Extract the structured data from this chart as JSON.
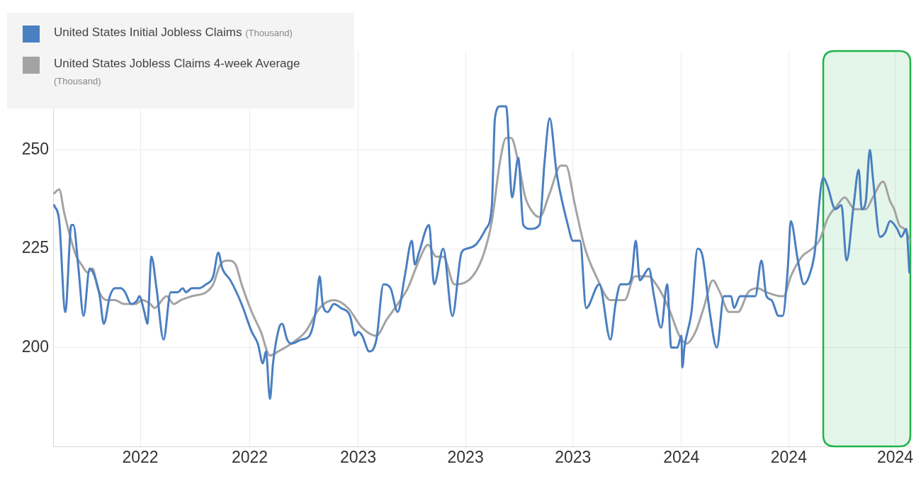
{
  "chart_data": {
    "type": "line",
    "xlim": [
      "2022-06-01",
      "2024-09-24"
    ],
    "xticks": [
      {
        "value": "2022-08-26",
        "label": "2022"
      },
      {
        "value": "2022-12-12",
        "label": "2022"
      },
      {
        "value": "2023-03-29",
        "label": "2023"
      },
      {
        "value": "2023-07-13",
        "label": "2023"
      },
      {
        "value": "2023-10-27",
        "label": "2023"
      },
      {
        "value": "2024-02-11",
        "label": "2024"
      },
      {
        "value": "2024-05-27",
        "label": "2024"
      },
      {
        "value": "2024-09-09",
        "label": "2024"
      }
    ],
    "ylim": [
      175,
      275
    ],
    "yticks": [
      200,
      225,
      250
    ],
    "grid": true,
    "legend": "top left",
    "marker": "none",
    "line_style": "solid",
    "bands": [
      {
        "axis": "x",
        "from": "2024-06-30",
        "to": "2024-09-24",
        "color": "#1db34a"
      }
    ],
    "series": [
      {
        "name": "United States Initial Jobless Claims (Thousand)",
        "color": "#4a7fc1",
        "x": [
          "2022-06-02",
          "2022-06-07",
          "2022-06-13",
          "2022-06-19",
          "2022-06-21",
          "2022-06-26",
          "2022-07-01",
          "2022-07-07",
          "2022-07-12",
          "2022-07-17",
          "2022-07-21",
          "2022-07-27",
          "2022-08-01",
          "2022-08-07",
          "2022-08-11",
          "2022-08-17",
          "2022-08-23",
          "2022-08-25",
          "2022-08-30",
          "2022-09-02",
          "2022-09-06",
          "2022-09-11",
          "2022-09-18",
          "2022-09-25",
          "2022-10-02",
          "2022-10-07",
          "2022-10-10",
          "2022-10-16",
          "2022-10-23",
          "2022-10-30",
          "2022-11-06",
          "2022-11-11",
          "2022-11-15",
          "2022-11-23",
          "2022-12-04",
          "2022-12-14",
          "2022-12-20",
          "2022-12-25",
          "2022-12-28",
          "2023-01-01",
          "2023-01-04",
          "2023-01-10",
          "2023-01-13",
          "2023-01-18",
          "2023-01-22",
          "2023-02-01",
          "2023-02-09",
          "2023-02-15",
          "2023-02-19",
          "2023-02-22",
          "2023-02-27",
          "2023-03-05",
          "2023-03-12",
          "2023-03-21",
          "2023-03-26",
          "2023-03-29",
          "2023-04-02",
          "2023-04-09",
          "2023-04-16",
          "2023-04-23",
          "2023-04-30",
          "2023-05-07",
          "2023-05-14",
          "2023-05-21",
          "2023-05-24",
          "2023-05-28",
          "2023-06-07",
          "2023-06-12",
          "2023-06-21",
          "2023-06-30",
          "2023-07-09",
          "2023-07-14",
          "2023-07-23",
          "2023-08-02",
          "2023-08-08",
          "2023-08-11",
          "2023-08-16",
          "2023-08-22",
          "2023-08-28",
          "2023-09-03",
          "2023-09-08",
          "2023-09-15",
          "2023-09-24",
          "2023-09-29",
          "2023-10-04",
          "2023-10-11",
          "2023-10-22",
          "2023-10-27",
          "2023-11-03",
          "2023-11-09",
          "2023-11-22",
          "2023-12-03",
          "2023-12-08",
          "2023-12-13",
          "2023-12-20",
          "2023-12-24",
          "2023-12-28",
          "2024-01-01",
          "2024-01-10",
          "2024-01-15",
          "2024-01-22",
          "2024-01-28",
          "2024-02-01",
          "2024-02-07",
          "2024-02-11",
          "2024-02-12",
          "2024-02-14",
          "2024-02-21",
          "2024-02-27",
          "2024-03-03",
          "2024-03-10",
          "2024-03-17",
          "2024-03-24",
          "2024-03-31",
          "2024-04-03",
          "2024-04-09",
          "2024-04-21",
          "2024-04-24",
          "2024-04-30",
          "2024-05-05",
          "2024-05-10",
          "2024-05-17",
          "2024-05-21",
          "2024-05-26",
          "2024-05-29",
          "2024-06-05",
          "2024-06-11",
          "2024-06-16",
          "2024-06-21",
          "2024-06-30",
          "2024-07-04",
          "2024-07-12",
          "2024-07-18",
          "2024-07-23",
          "2024-07-30",
          "2024-08-04",
          "2024-08-07",
          "2024-08-11",
          "2024-08-15",
          "2024-08-18",
          "2024-08-25",
          "2024-08-30",
          "2024-09-04",
          "2024-09-11",
          "2024-09-15",
          "2024-09-20",
          "2024-09-23"
        ],
        "values": [
          236,
          232,
          209,
          231,
          231,
          220,
          208,
          220,
          218,
          213,
          206,
          213,
          215,
          215,
          214,
          211,
          212,
          213,
          209,
          206,
          223,
          215,
          202,
          214,
          214,
          215,
          214,
          215,
          215,
          216,
          218,
          224,
          220,
          217,
          211,
          204,
          201,
          196,
          199,
          187,
          196,
          205,
          206,
          202,
          201,
          202,
          203,
          209,
          218,
          211,
          209,
          211,
          210,
          208,
          203,
          204,
          203,
          199,
          202,
          216,
          215,
          209,
          218,
          227,
          221,
          224,
          231,
          216,
          225,
          208,
          224,
          225,
          226,
          230,
          236,
          258,
          261,
          261,
          238,
          248,
          231,
          230,
          231,
          247,
          258,
          244,
          231,
          227,
          227,
          210,
          216,
          202,
          211,
          216,
          216,
          218,
          227,
          217,
          220,
          213,
          205,
          216,
          200,
          200,
          203,
          195,
          200,
          209,
          225,
          223,
          209,
          200,
          213,
          213,
          210,
          213,
          213,
          213,
          222,
          213,
          212,
          208,
          208,
          220,
          232,
          222,
          216,
          218,
          223,
          243,
          241,
          235,
          236,
          222,
          236,
          245,
          235,
          237,
          250,
          243,
          228,
          229,
          232,
          230,
          228,
          230,
          219
        ]
      },
      {
        "name": "United States Jobless Claims 4-week Average (Thousand)",
        "color": "#a3a3a3",
        "x": [
          "2022-06-02",
          "2022-06-07",
          "2022-06-12",
          "2022-06-19",
          "2022-06-24",
          "2022-06-29",
          "2022-07-05",
          "2022-07-10",
          "2022-07-15",
          "2022-07-24",
          "2022-08-01",
          "2022-08-10",
          "2022-08-21",
          "2022-08-28",
          "2022-09-05",
          "2022-09-09",
          "2022-09-21",
          "2022-09-28",
          "2022-10-05",
          "2022-10-16",
          "2022-10-30",
          "2022-11-06",
          "2022-11-13",
          "2022-11-21",
          "2022-11-28",
          "2022-12-04",
          "2022-12-14",
          "2022-12-23",
          "2023-01-01",
          "2023-01-09",
          "2023-01-22",
          "2023-02-05",
          "2023-02-19",
          "2023-03-05",
          "2023-03-19",
          "2023-04-02",
          "2023-04-16",
          "2023-04-26",
          "2023-05-07",
          "2023-05-17",
          "2023-05-28",
          "2023-06-06",
          "2023-06-14",
          "2023-06-21",
          "2023-07-02",
          "2023-07-16",
          "2023-07-30",
          "2023-08-08",
          "2023-08-16",
          "2023-08-22",
          "2023-08-27",
          "2023-09-03",
          "2023-09-10",
          "2023-09-18",
          "2023-09-24",
          "2023-10-04",
          "2023-10-15",
          "2023-10-20",
          "2023-10-29",
          "2023-11-08",
          "2023-11-19",
          "2023-12-03",
          "2023-12-17",
          "2023-12-27",
          "2024-01-10",
          "2024-01-17",
          "2024-01-24",
          "2024-01-31",
          "2024-02-09",
          "2024-02-16",
          "2024-02-25",
          "2024-03-04",
          "2024-03-13",
          "2024-03-20",
          "2024-03-29",
          "2024-04-07",
          "2024-04-17",
          "2024-04-26",
          "2024-05-05",
          "2024-05-19",
          "2024-05-22",
          "2024-05-29",
          "2024-06-09",
          "2024-06-19",
          "2024-06-26",
          "2024-07-05",
          "2024-07-14",
          "2024-07-21",
          "2024-07-31",
          "2024-08-11",
          "2024-08-18",
          "2024-08-28",
          "2024-09-04",
          "2024-09-08",
          "2024-09-13",
          "2024-09-18",
          "2024-09-24"
        ],
        "values": [
          239,
          240,
          234,
          227,
          223,
          221,
          219,
          220,
          215,
          212,
          212,
          211,
          211,
          212,
          211,
          210,
          213,
          211,
          212,
          213,
          214,
          216,
          221,
          222,
          221,
          216,
          209,
          204,
          198,
          199,
          201,
          204,
          210,
          212,
          210,
          205,
          203,
          207,
          211,
          215,
          222,
          226,
          223,
          223,
          216,
          217,
          223,
          232,
          247,
          253,
          253,
          247,
          238,
          234,
          233,
          239,
          246,
          246,
          236,
          225,
          218,
          212,
          212,
          218,
          218,
          216,
          213,
          209,
          203,
          201,
          204,
          210,
          217,
          214,
          209,
          209,
          214,
          215,
          214,
          213,
          213,
          218,
          223,
          225,
          227,
          233,
          236,
          238,
          235,
          235,
          238,
          242,
          237,
          235,
          231,
          230,
          227
        ]
      }
    ]
  }
}
